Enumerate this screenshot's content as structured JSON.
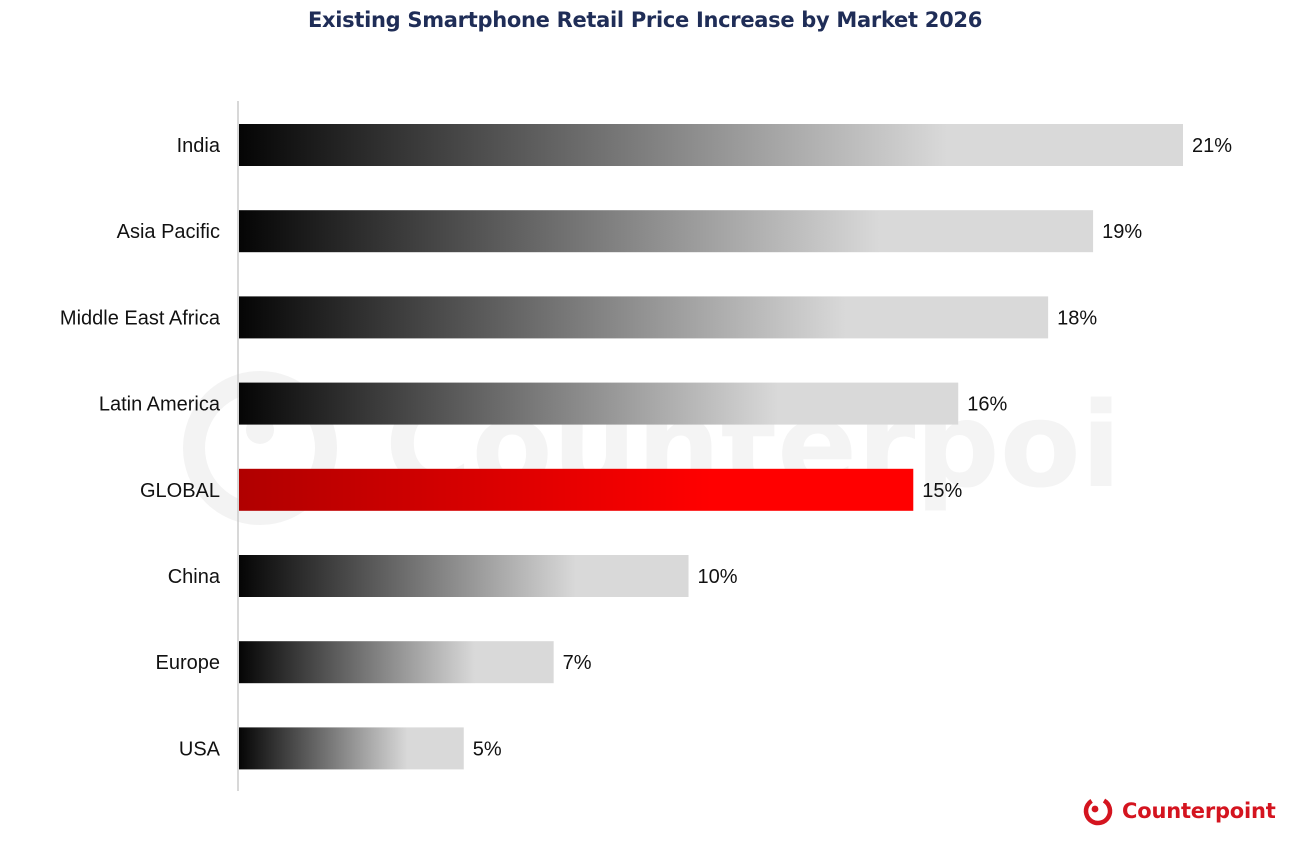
{
  "brand": {
    "name": "Counterpoint",
    "color": "#d4141f",
    "icon": "counterpoint-logo-icon"
  },
  "chart_data": {
    "type": "bar",
    "orientation": "horizontal",
    "title": "Existing Smartphone Retail Price Increase by Market 2026",
    "categories": [
      "India",
      "Asia Pacific",
      "Middle East Africa",
      "Latin America",
      "GLOBAL",
      "China",
      "Europe",
      "USA"
    ],
    "values": [
      21,
      19,
      18,
      16,
      15,
      10,
      7,
      5
    ],
    "value_labels": [
      "21%",
      "19%",
      "18%",
      "16%",
      "15%",
      "10%",
      "7%",
      "5%"
    ],
    "unit": "%",
    "highlight_category": "GLOBAL",
    "highlight_color": "#ee0000",
    "default_gradient": [
      "#050505",
      "#d9d9d9"
    ],
    "highlight_gradient": [
      "#b00000",
      "#ff0000"
    ],
    "xlim": [
      0,
      21
    ],
    "grid": false,
    "legend": "none"
  }
}
